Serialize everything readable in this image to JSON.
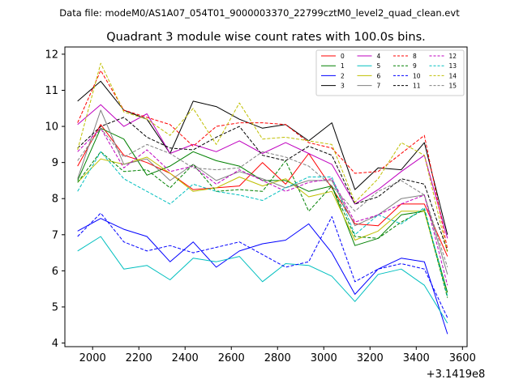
{
  "chart_data": {
    "type": "line",
    "suptitle": "Data file: modeM0/AS1A07_054T01_9000003370_22799cztM0_level2_quad_clean.evt",
    "title": "Quadrant 3 module wise count rates with 100.0s bins.",
    "xlabel": "",
    "ylabel": "",
    "x_offset_label": "+3.1419e8",
    "xlim": [
      1880,
      3620
    ],
    "ylim": [
      3.9,
      12.2
    ],
    "x_ticks": [
      2000,
      2200,
      2400,
      2600,
      2800,
      3000,
      3200,
      3400,
      3600
    ],
    "y_ticks": [
      4,
      5,
      6,
      7,
      8,
      9,
      10,
      11,
      12
    ],
    "x": [
      1935,
      2035,
      2135,
      2235,
      2335,
      2435,
      2535,
      2635,
      2735,
      2835,
      2935,
      3035,
      3135,
      3235,
      3335,
      3435,
      3535
    ],
    "legend_position": "top-right",
    "series": [
      {
        "name": "0",
        "color": "#ff0000",
        "style": "solid",
        "values": [
          8.9,
          10.05,
          9.2,
          9.0,
          8.7,
          8.25,
          8.3,
          8.35,
          9.0,
          8.4,
          9.25,
          8.3,
          7.3,
          7.25,
          7.85,
          7.85,
          6.4
        ]
      },
      {
        "name": "1",
        "color": "#008000",
        "style": "solid",
        "values": [
          8.5,
          9.95,
          9.65,
          8.65,
          8.9,
          9.3,
          9.05,
          8.9,
          8.5,
          8.5,
          8.2,
          8.35,
          6.7,
          6.9,
          7.55,
          7.65,
          5.4
        ]
      },
      {
        "name": "2",
        "color": "#0000ff",
        "style": "solid",
        "values": [
          7.1,
          7.45,
          7.15,
          6.95,
          6.25,
          6.8,
          6.1,
          6.55,
          6.75,
          6.85,
          7.3,
          6.5,
          5.35,
          6.05,
          6.35,
          6.25,
          4.25
        ]
      },
      {
        "name": "3",
        "color": "#000000",
        "style": "solid",
        "values": [
          10.7,
          11.25,
          10.45,
          10.2,
          9.25,
          10.7,
          10.55,
          10.2,
          9.95,
          10.05,
          9.6,
          10.1,
          8.25,
          8.85,
          8.8,
          9.55,
          7.0
        ]
      },
      {
        "name": "4",
        "color": "#bf00bf",
        "style": "solid",
        "values": [
          10.05,
          10.6,
          10.0,
          10.35,
          9.25,
          9.5,
          9.3,
          9.6,
          9.25,
          9.55,
          9.25,
          8.95,
          7.85,
          8.25,
          8.75,
          9.2,
          6.9
        ]
      },
      {
        "name": "5",
        "color": "#00bfbf",
        "style": "solid",
        "values": [
          6.55,
          6.95,
          6.05,
          6.15,
          5.75,
          6.35,
          6.25,
          6.4,
          5.7,
          6.2,
          6.15,
          5.85,
          5.15,
          5.9,
          6.05,
          5.6,
          4.55
        ]
      },
      {
        "name": "6",
        "color": "#bfbf00",
        "style": "solid",
        "values": [
          8.45,
          9.1,
          8.95,
          9.15,
          8.7,
          8.2,
          8.3,
          8.6,
          8.35,
          8.55,
          8.05,
          8.2,
          6.85,
          7.1,
          7.65,
          7.65,
          5.3
        ]
      },
      {
        "name": "7",
        "color": "#808080",
        "style": "solid",
        "values": [
          8.55,
          10.45,
          8.95,
          9.1,
          8.5,
          8.95,
          8.5,
          8.75,
          8.55,
          8.3,
          8.5,
          8.5,
          7.25,
          7.55,
          8.0,
          8.1,
          5.9
        ]
      },
      {
        "name": "8",
        "color": "#ff0000",
        "style": "dashed",
        "values": [
          10.1,
          11.55,
          10.45,
          10.25,
          10.05,
          9.45,
          10.0,
          10.1,
          10.1,
          10.05,
          9.55,
          9.4,
          8.7,
          8.75,
          9.25,
          9.75,
          6.6
        ]
      },
      {
        "name": "9",
        "color": "#008000",
        "style": "dashed",
        "values": [
          8.45,
          9.3,
          8.75,
          8.8,
          8.3,
          8.95,
          8.2,
          8.25,
          8.2,
          9.05,
          7.65,
          8.35,
          6.95,
          6.9,
          7.35,
          7.7,
          5.25
        ]
      },
      {
        "name": "10",
        "color": "#0000ff",
        "style": "dashed",
        "values": [
          6.95,
          7.6,
          6.8,
          6.55,
          6.7,
          6.5,
          6.65,
          6.8,
          6.45,
          6.1,
          6.25,
          7.5,
          5.7,
          6.05,
          6.2,
          6.05,
          4.7
        ]
      },
      {
        "name": "11",
        "color": "#000000",
        "style": "dashed",
        "values": [
          9.4,
          10.0,
          10.25,
          9.7,
          9.4,
          9.35,
          9.7,
          10.0,
          9.2,
          9.05,
          9.45,
          9.2,
          7.85,
          8.05,
          8.55,
          8.4,
          6.55
        ]
      },
      {
        "name": "12",
        "color": "#bf00bf",
        "style": "dashed",
        "values": [
          9.3,
          9.95,
          8.85,
          9.35,
          8.75,
          8.9,
          8.4,
          8.8,
          8.5,
          8.2,
          8.45,
          8.55,
          7.35,
          7.55,
          7.85,
          8.1,
          5.6
        ]
      },
      {
        "name": "13",
        "color": "#00bfbf",
        "style": "dashed",
        "values": [
          8.2,
          9.3,
          8.55,
          8.2,
          7.85,
          8.4,
          8.2,
          8.1,
          7.95,
          8.3,
          8.6,
          8.6,
          7.0,
          7.55,
          7.3,
          7.75,
          5.3
        ]
      },
      {
        "name": "14",
        "color": "#bfbf00",
        "style": "dashed",
        "values": [
          9.35,
          11.75,
          10.4,
          10.2,
          9.75,
          10.5,
          9.5,
          10.65,
          9.65,
          9.7,
          9.6,
          9.5,
          7.9,
          8.55,
          9.55,
          9.2,
          6.5
        ]
      },
      {
        "name": "15",
        "color": "#808080",
        "style": "dashed",
        "values": [
          9.05,
          9.95,
          9.15,
          9.5,
          9.25,
          8.85,
          8.8,
          8.85,
          9.3,
          9.15,
          8.9,
          8.35,
          7.65,
          8.2,
          8.5,
          8.1,
          6.1
        ]
      }
    ]
  }
}
